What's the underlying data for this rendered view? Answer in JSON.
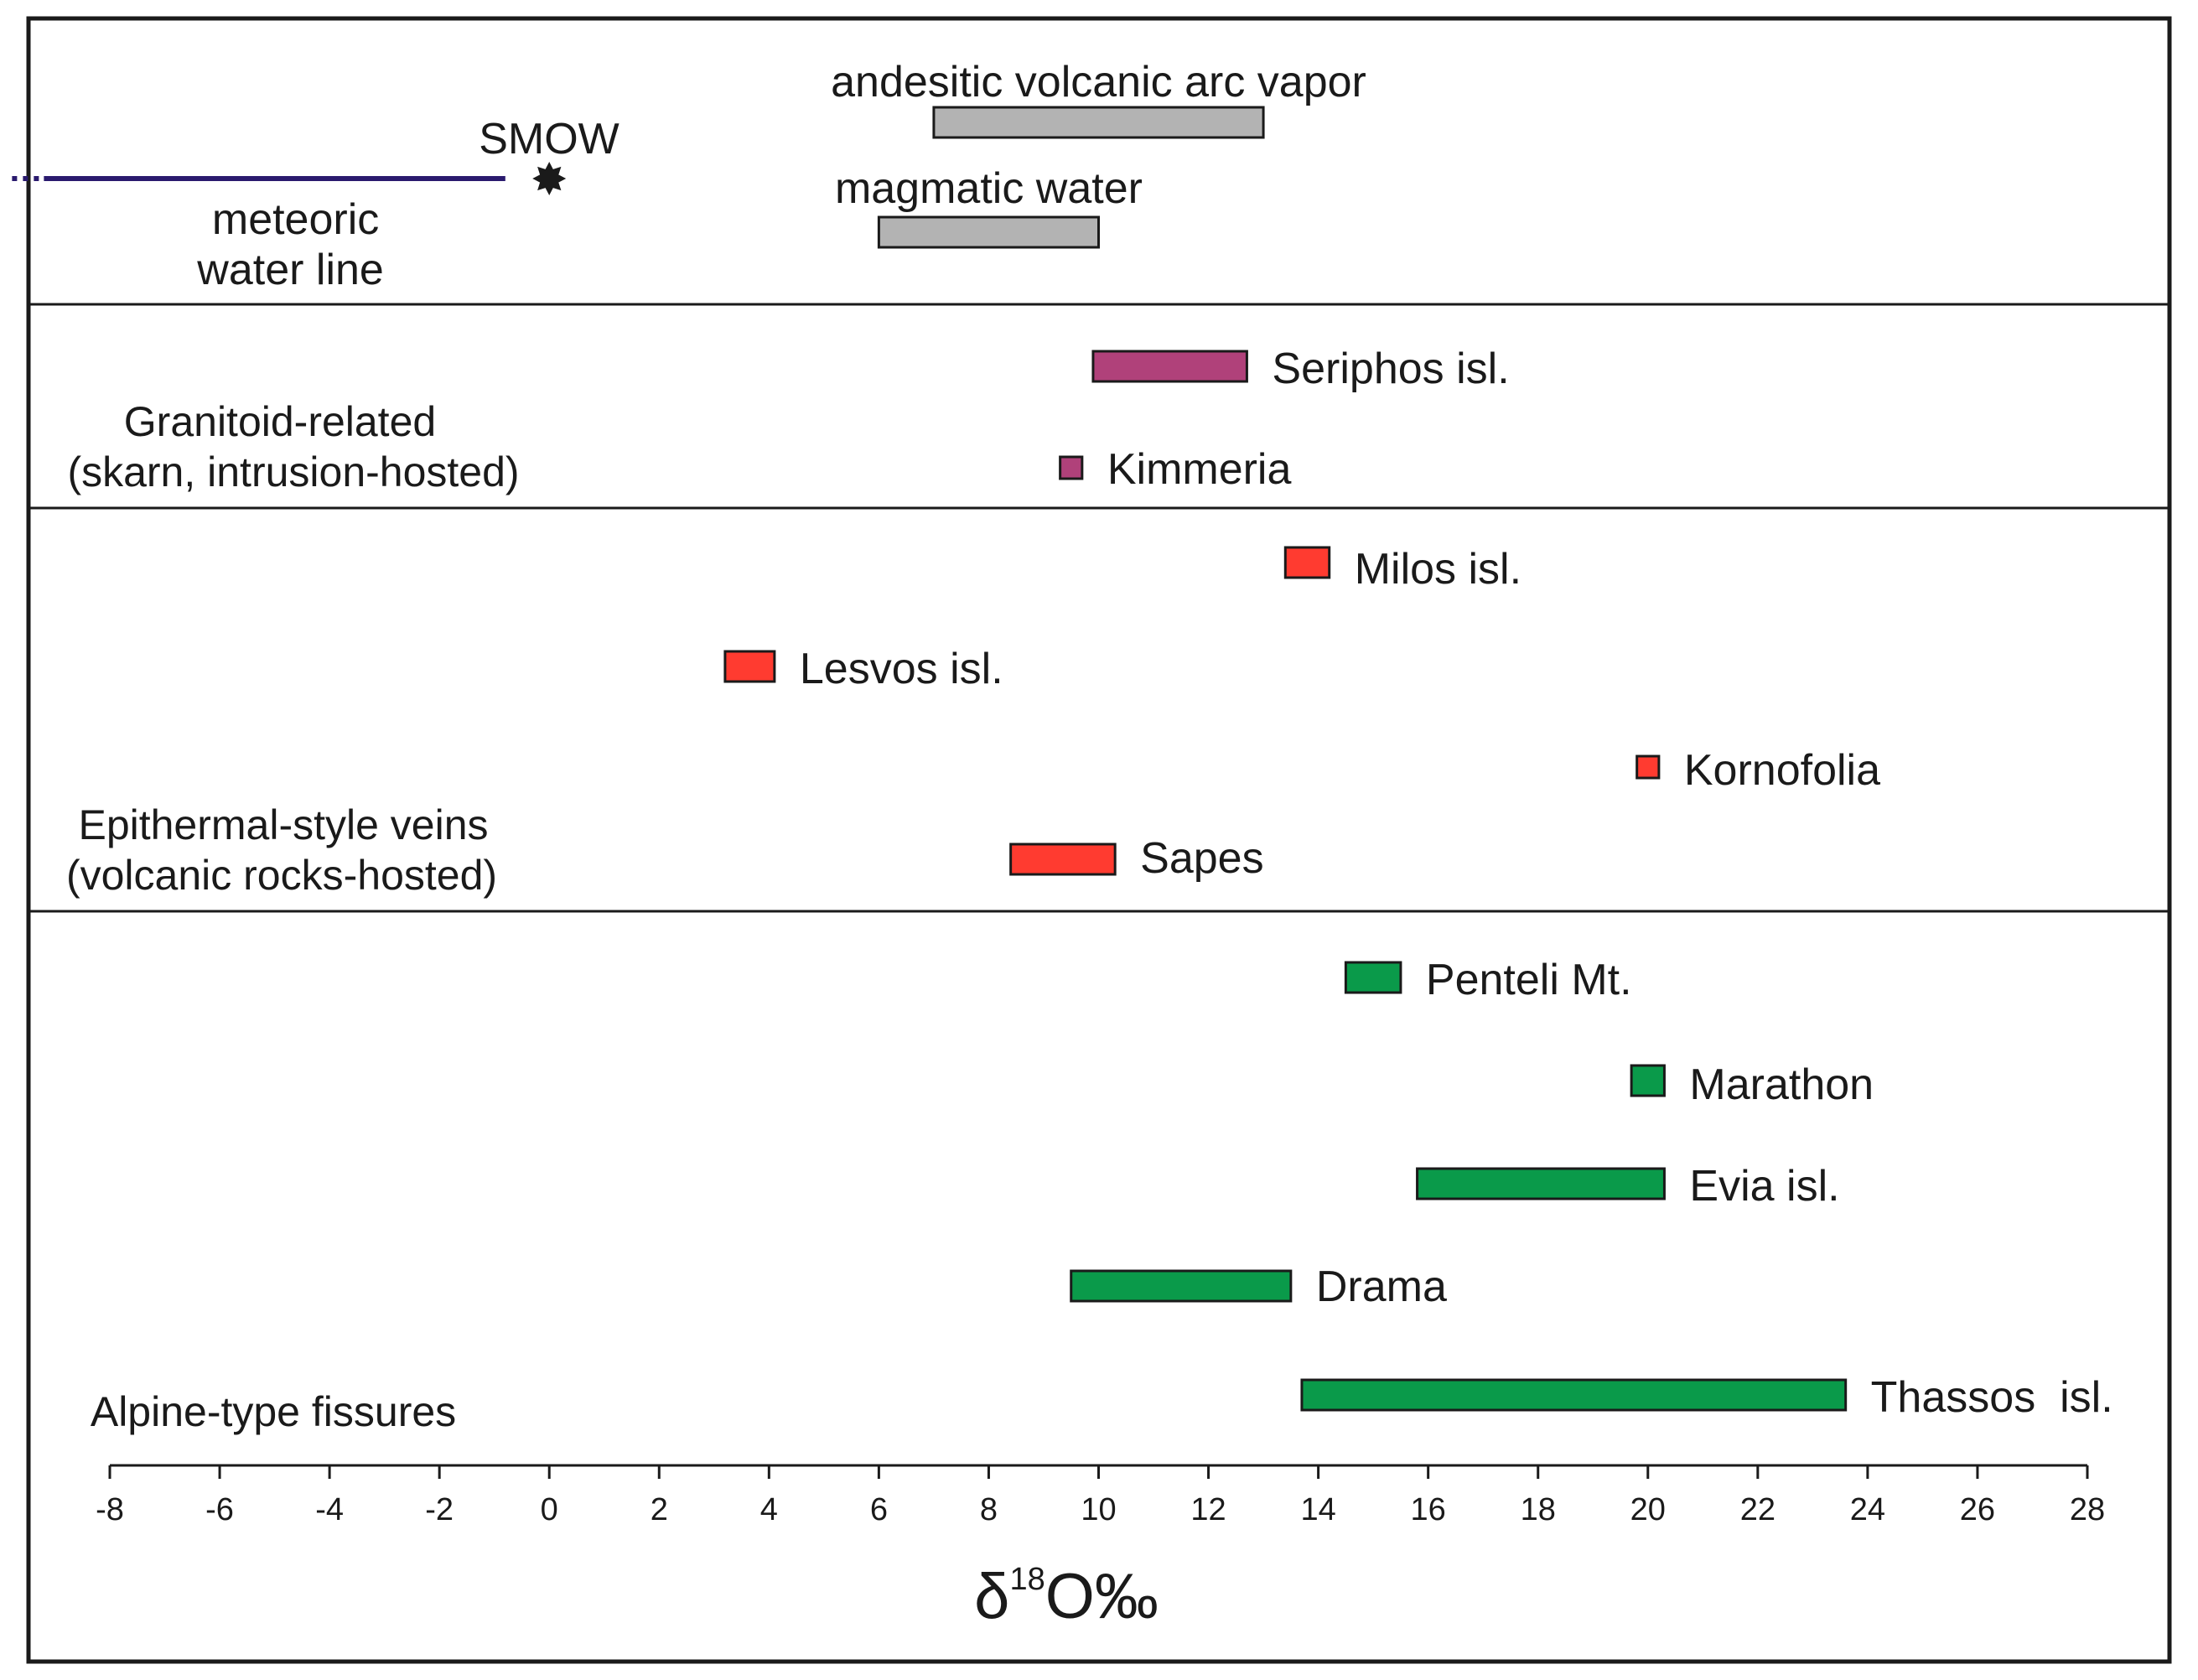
{
  "chart_data": {
    "type": "range-bar",
    "xlabel": {
      "prefix": "δ",
      "superscript": "18",
      "suffix": "O‰"
    },
    "xlim": [
      -8,
      28
    ],
    "xticks": [
      -8,
      -6,
      -4,
      -2,
      0,
      2,
      4,
      6,
      8,
      10,
      12,
      14,
      16,
      18,
      20,
      22,
      24,
      26,
      28
    ],
    "reference": {
      "meteoric_water_line": {
        "label_line1": "meteoric",
        "label_line2": "water line",
        "x_start": -9.2,
        "x_end": -0.8,
        "color": "#2a1a6e"
      },
      "smow": {
        "label": "SMOW",
        "x": 0
      },
      "bars": [
        {
          "name": "andesitic volcanic arc vapor",
          "min": 7,
          "max": 13,
          "color": "#b3b3b3"
        },
        {
          "name": "magmatic water",
          "min": 6,
          "max": 10,
          "color": "#b3b3b3"
        }
      ]
    },
    "groups": [
      {
        "label_line1": "Granitoid-related",
        "label_line2": "(skarn, intrusion-hosted)",
        "color": "#b0417a",
        "series": [
          {
            "name": "Seriphos isl.",
            "min": 9.9,
            "max": 12.7
          },
          {
            "name": "Kimmeria",
            "min": 9.3,
            "max": 9.7
          }
        ]
      },
      {
        "label_line1": "Epithermal-style veins",
        "label_line2": "(volcanic rocks-hosted)",
        "color": "#ff3b30",
        "series": [
          {
            "name": "Milos isl.",
            "min": 13.4,
            "max": 14.2
          },
          {
            "name": "Lesvos isl.",
            "min": 3.2,
            "max": 4.1
          },
          {
            "name": "Kornofolia",
            "min": 19.8,
            "max": 20.2
          },
          {
            "name": "Sapes",
            "min": 8.4,
            "max": 10.3
          }
        ]
      },
      {
        "label_line1": "Alpine-type fissures",
        "label_line2": "",
        "color": "#0a9a4a",
        "series": [
          {
            "name": "Penteli Mt.",
            "min": 14.5,
            "max": 15.5
          },
          {
            "name": "Marathon",
            "min": 19.7,
            "max": 20.3
          },
          {
            "name": "Evia isl.",
            "min": 15.8,
            "max": 20.3
          },
          {
            "name": "Drama",
            "min": 9.5,
            "max": 13.5
          },
          {
            "name": "Thassos  isl.",
            "min": 13.7,
            "max": 23.6
          }
        ]
      }
    ]
  }
}
